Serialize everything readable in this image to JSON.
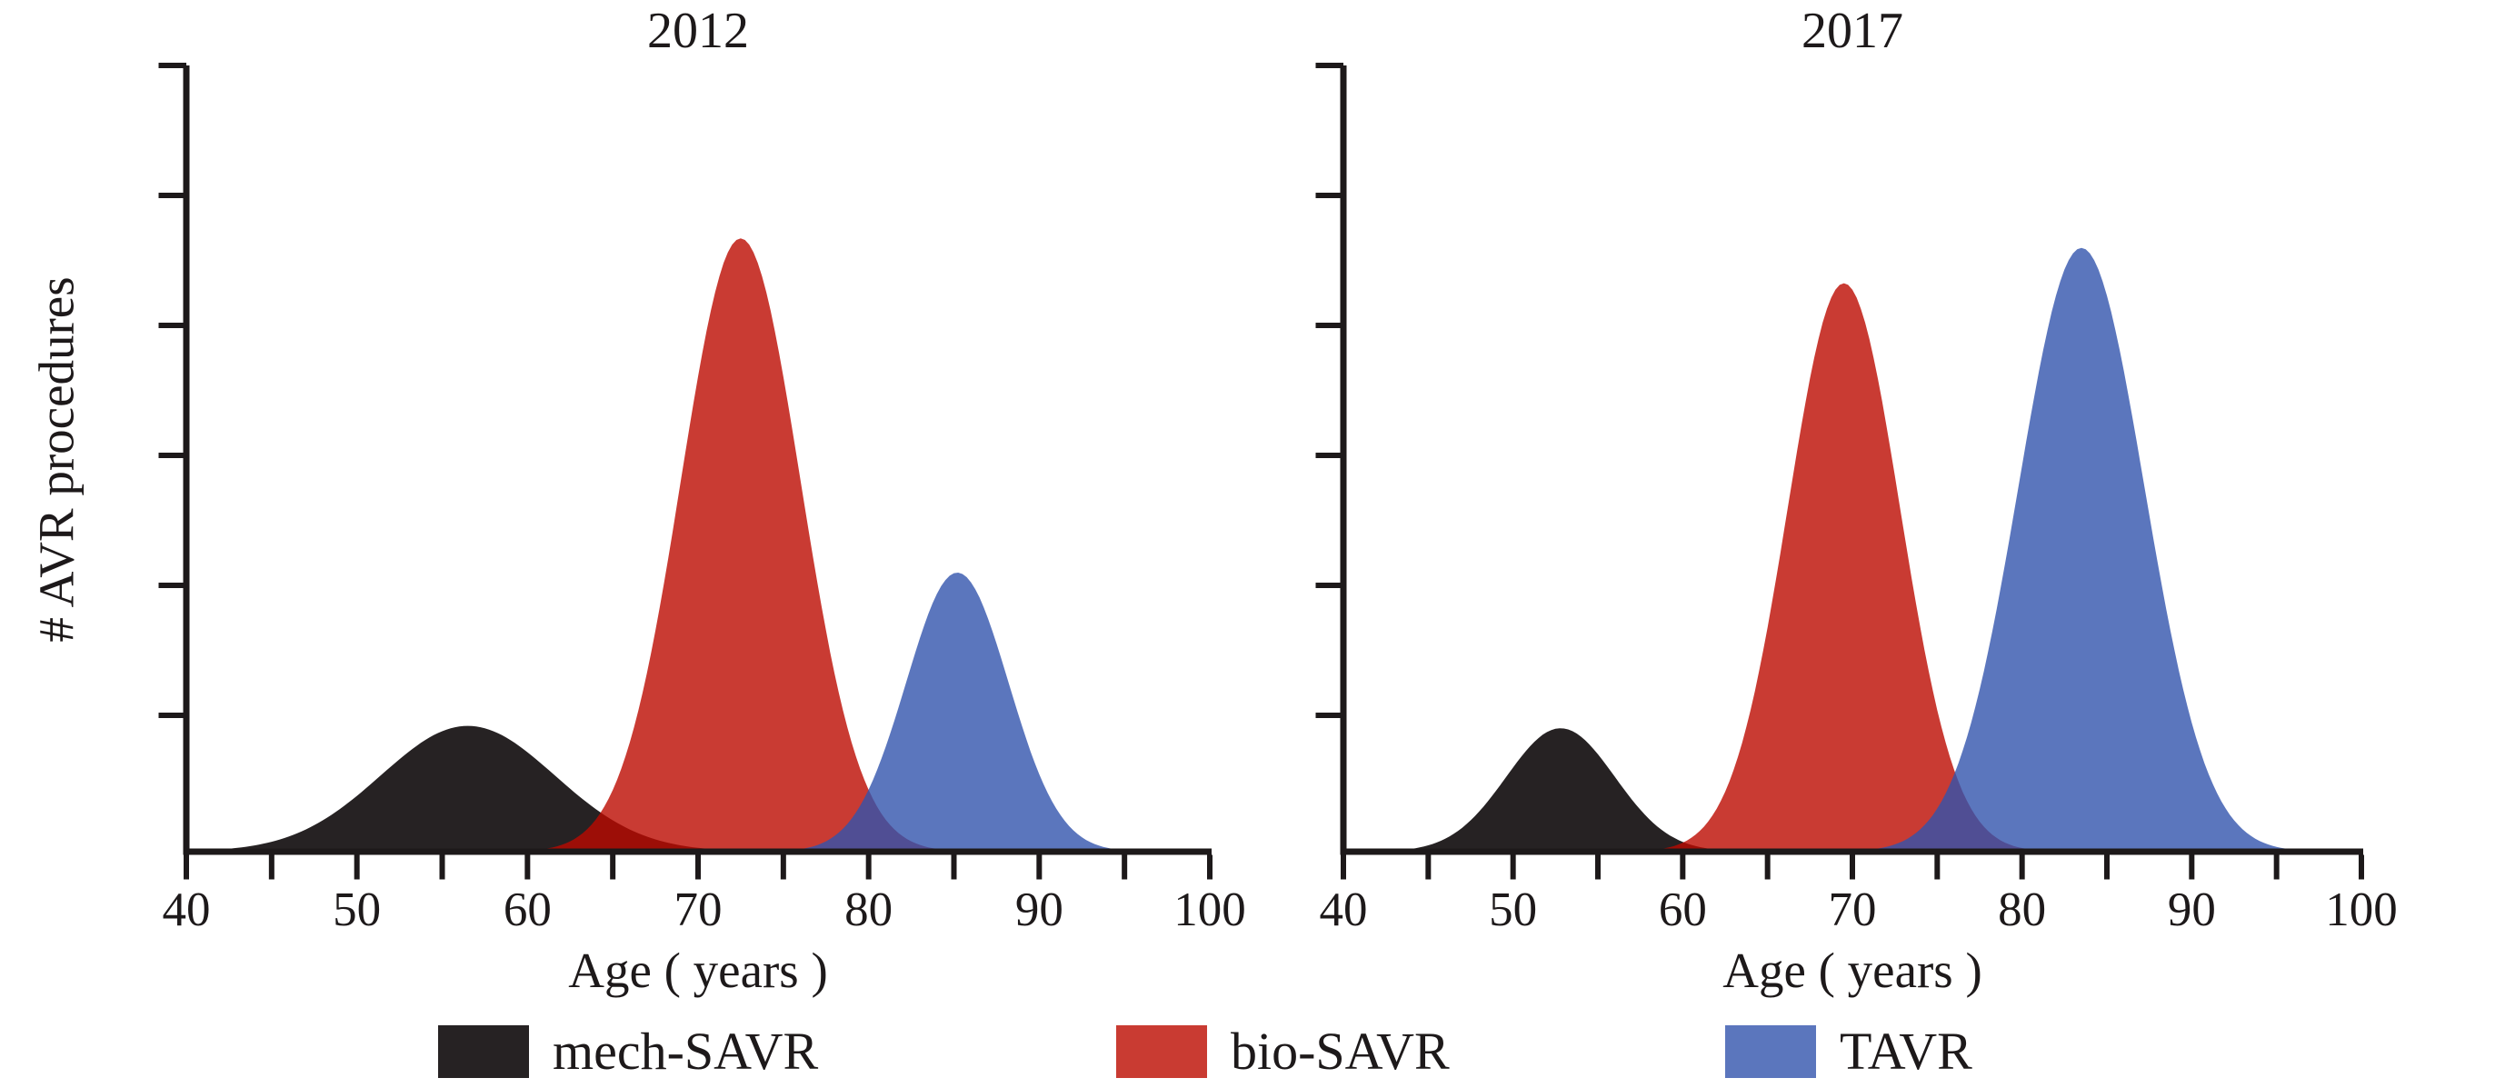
{
  "figure": {
    "titles": [
      "2012",
      "2017"
    ],
    "x_axis_label": "Age ( years )",
    "y_axis_label": "# AVR procedures"
  },
  "legend": {
    "items": [
      {
        "label": "mech-SAVR",
        "color": "#262223"
      },
      {
        "label": "bio-SAVR",
        "color": "#C93B32"
      },
      {
        "label": "TAVR",
        "color": "#5B76BD"
      }
    ]
  },
  "chart_data": [
    {
      "type": "area",
      "subtype": "overlapping-gaussian-densities",
      "title": "2012",
      "xlabel": "Age ( years )",
      "ylabel": "# AVR procedures",
      "x_axis": {
        "min": 40,
        "max": 100,
        "tick_step": 5,
        "label_step": 10,
        "tick_labels": [
          40,
          50,
          60,
          70,
          80,
          90,
          100
        ]
      },
      "y_axis": {
        "labeled": false,
        "tick_count": 6,
        "note": "unlabeled relative count axis"
      },
      "grid": false,
      "series": [
        {
          "name": "mech-SAVR",
          "distribution": "gaussian",
          "peak_age": 56.5,
          "sigma": 5.1,
          "peak_height": 0.16,
          "display_color": "#262223",
          "fill_color": "#262223",
          "fill_opacity": 1
        },
        {
          "name": "bio-SAVR",
          "distribution": "gaussian",
          "peak_age": 72.5,
          "sigma": 3.5,
          "peak_height": 0.78,
          "display_color": "#C93B32",
          "fill_color": "#BC0A00",
          "fill_opacity": 0.8
        },
        {
          "name": "TAVR",
          "distribution": "gaussian",
          "peak_age": 85.2,
          "sigma": 3.0,
          "peak_height": 0.355,
          "display_color": "#5B76BD",
          "fill_color": "#3254AC",
          "fill_opacity": 0.8
        }
      ]
    },
    {
      "type": "area",
      "subtype": "overlapping-gaussian-densities",
      "title": "2017",
      "xlabel": "Age ( years )",
      "ylabel": "# AVR procedures",
      "x_axis": {
        "min": 40,
        "max": 100,
        "tick_step": 5,
        "label_step": 10,
        "tick_labels": [
          40,
          50,
          60,
          70,
          80,
          90,
          100
        ]
      },
      "y_axis": {
        "labeled": false,
        "tick_count": 6,
        "note": "unlabeled relative count axis"
      },
      "grid": false,
      "series": [
        {
          "name": "mech-SAVR",
          "distribution": "gaussian",
          "peak_age": 52.8,
          "sigma": 3.2,
          "peak_height": 0.157,
          "display_color": "#262223",
          "fill_color": "#262223",
          "fill_opacity": 1
        },
        {
          "name": "bio-SAVR",
          "distribution": "gaussian",
          "peak_age": 69.5,
          "sigma": 3.3,
          "peak_height": 0.723,
          "display_color": "#C93B32",
          "fill_color": "#BC0A00",
          "fill_opacity": 0.8
        },
        {
          "name": "TAVR",
          "distribution": "gaussian",
          "peak_age": 83.5,
          "sigma": 3.7,
          "peak_height": 0.768,
          "display_color": "#5B76BD",
          "fill_color": "#3254AC",
          "fill_opacity": 0.8
        }
      ]
    }
  ]
}
